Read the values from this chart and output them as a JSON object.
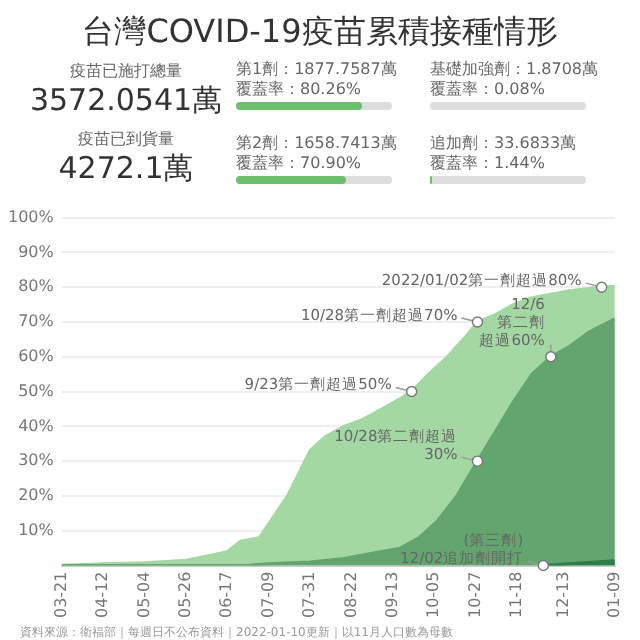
{
  "chart_data": {
    "type": "area",
    "title": "台灣COVID-19疫苗累積接種情形",
    "series": [
      {
        "color": "#a3d8a3",
        "x": [
          "2021-03-21",
          "2021-04-12",
          "2021-05-04",
          "2021-05-26",
          "2021-06-09",
          "2021-06-17",
          "2021-06-24",
          "2021-07-04",
          "2021-07-09",
          "2021-07-19",
          "2021-07-31",
          "2021-08-08",
          "2021-08-18",
          "2021-08-28",
          "2021-09-07",
          "2021-09-17",
          "2021-09-23",
          "2021-10-02",
          "2021-10-12",
          "2021-10-22",
          "2021-10-28",
          "2021-11-06",
          "2021-11-16",
          "2021-11-26",
          "2021-12-06",
          "2021-12-16",
          "2021-12-26",
          "2022-01-02",
          "2022-01-09"
        ],
        "values": [
          0.1,
          0.5,
          0.8,
          1.5,
          3,
          4,
          7,
          8,
          12,
          20,
          33,
          37,
          40,
          42,
          45,
          48,
          50,
          55,
          60,
          66,
          70,
          72,
          75,
          77,
          78,
          79,
          79.6,
          80,
          80.3
        ]
      },
      {
        "color": "#62a56e",
        "x": [
          "2021-03-21",
          "2021-06-29",
          "2021-07-09",
          "2021-07-31",
          "2021-08-18",
          "2021-09-07",
          "2021-09-17",
          "2021-09-27",
          "2021-10-07",
          "2021-10-17",
          "2021-10-28",
          "2021-11-06",
          "2021-11-16",
          "2021-11-26",
          "2021-12-06",
          "2021-12-16",
          "2021-12-26",
          "2022-01-09"
        ],
        "values": [
          0,
          0.1,
          0.5,
          1,
          2,
          4,
          5,
          8,
          13,
          20,
          30,
          38,
          47,
          55,
          60,
          63,
          67,
          70.9
        ]
      },
      {
        "color": "#2e7d4a",
        "x": [
          "2021-12-02",
          "2021-12-16",
          "2022-01-09"
        ],
        "values": [
          0,
          0.5,
          1.4
        ]
      }
    ],
    "xlim": [
      "2021-03-21",
      "2022-01-09"
    ],
    "xticks": [
      {
        "value": "2021-03-21",
        "label": "03-21"
      },
      {
        "value": "2021-04-12",
        "label": "04-12"
      },
      {
        "value": "2021-05-04",
        "label": "05-04"
      },
      {
        "value": "2021-05-26",
        "label": "05-26"
      },
      {
        "value": "2021-06-17",
        "label": "06-17"
      },
      {
        "value": "2021-07-09",
        "label": "07-09"
      },
      {
        "value": "2021-07-31",
        "label": "07-31"
      },
      {
        "value": "2021-08-22",
        "label": "08-22"
      },
      {
        "value": "2021-09-13",
        "label": "09-13"
      },
      {
        "value": "2021-10-05",
        "label": "10-05"
      },
      {
        "value": "2021-10-27",
        "label": "10-27"
      },
      {
        "value": "2021-11-18",
        "label": "11-18"
      },
      {
        "value": "2021-12-13",
        "label": "12-13"
      },
      {
        "value": "2022-01-09",
        "label": "01-09"
      }
    ],
    "ylim": [
      0,
      100
    ],
    "yticks": [
      {
        "value": 0,
        "label": null
      },
      {
        "value": 10,
        "label": "10%"
      },
      {
        "value": 20,
        "label": "20%"
      },
      {
        "value": 30,
        "label": "30%"
      },
      {
        "value": 40,
        "label": "40%"
      },
      {
        "value": 50,
        "label": "50%"
      },
      {
        "value": 60,
        "label": "60%"
      },
      {
        "value": 70,
        "label": "70%"
      },
      {
        "value": 80,
        "label": "80%"
      },
      {
        "value": 90,
        "label": "90%"
      },
      {
        "value": 100,
        "label": "100%"
      }
    ],
    "grid": "y",
    "legend": false,
    "marker": "none",
    "annotations": [
      "疫苗已施打總量",
      "3572.0541萬",
      "疫苗已到貨量",
      "4272.1萬",
      "第1劑：1877.7587萬",
      "覆蓋率：80.26%",
      "基礎加強劑：1.8708萬",
      "覆蓋率：0.08%",
      "第2劑：1658.7413萬",
      "覆蓋率：70.90%",
      "追加劑：33.6833萬",
      "覆蓋率：1.44%",
      {
        "text": "2022/01/02第一劑超過80%",
        "x": "2022-01-02",
        "y": 80
      },
      {
        "text": "10/28第一劑超過70%",
        "x": "2021-10-28",
        "y": 70
      },
      {
        "text": "9/23第一劑超過50%",
        "x": "2021-09-23",
        "y": 50
      },
      {
        "text": "12/6",
        "x": "2021-12-06",
        "y": 60
      },
      {
        "text": "第二劑",
        "x": "2021-12-06",
        "y": 60
      },
      {
        "text": "超過60%",
        "x": "2021-12-06",
        "y": 60
      },
      {
        "text": "10/28第二劑超過",
        "x": "2021-10-28",
        "y": 30
      },
      {
        "text": "30%",
        "x": "2021-10-28",
        "y": 30
      },
      {
        "text": "(第三劑)",
        "x": "2021-12-02",
        "y": 0
      },
      {
        "text": "12/02追加劑開打",
        "x": "2021-12-02",
        "y": 0
      },
      "資料來源：衛福部｜每週日不公布資料｜2022-01-10更新｜以11月人口數為母數"
    ]
  }
}
